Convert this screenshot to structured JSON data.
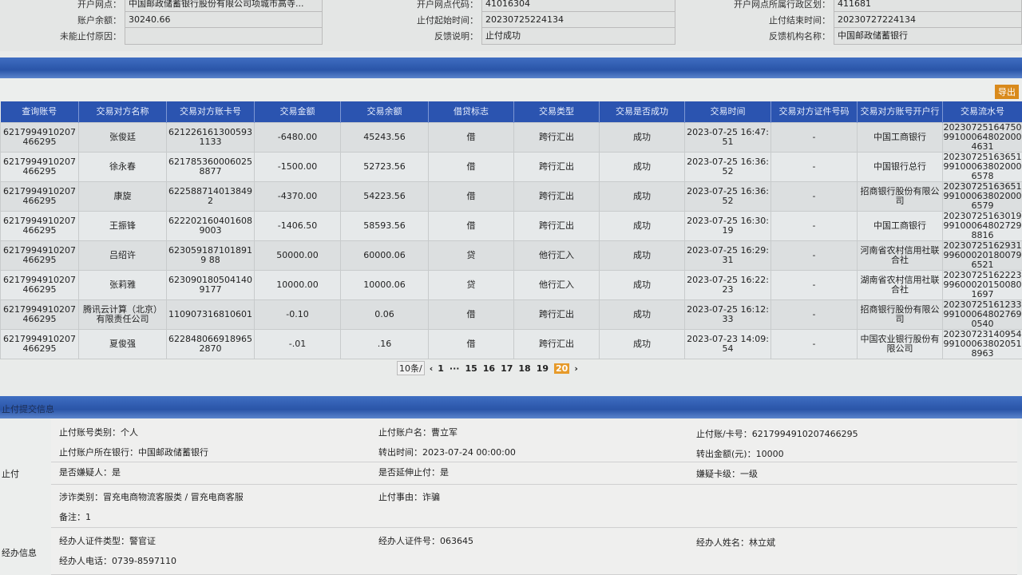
{
  "top_info": [
    {
      "label": "开户网点：",
      "value": "中国邮政储蓄银行股份有限公司项城市高寺..."
    },
    {
      "label": "开户网点代码：",
      "value": "41016304"
    },
    {
      "label": "开户网点所属行政区划：",
      "value": "411681"
    },
    {
      "label": "账户余额：",
      "value": "30240.66"
    },
    {
      "label": "止付起始时间：",
      "value": "20230725224134"
    },
    {
      "label": "止付结束时间：",
      "value": "20230727224134"
    },
    {
      "label": "未能止付原因：",
      "value": ""
    },
    {
      "label": "反馈说明：",
      "value": "止付成功"
    },
    {
      "label": "反馈机构名称：",
      "value": "中国邮政储蓄银行"
    }
  ],
  "export_label": "导出",
  "table": {
    "headers": [
      "查询账号",
      "交易对方名称",
      "交易对方账卡号",
      "交易金额",
      "交易余额",
      "借贷标志",
      "交易类型",
      "交易是否成功",
      "交易时间",
      "交易对方证件号码",
      "交易对方账号开户行",
      "交易流水号"
    ],
    "rows": [
      [
        "6217994910207466295",
        "张俊廷",
        "6212261613005931133",
        "-6480.00",
        "45243.56",
        "借",
        "跨行汇出",
        "成功",
        "2023-07-25 16:47:51",
        "-",
        "中国工商银行",
        "20230725164750991000648020004631"
      ],
      [
        "6217994910207466295",
        "徐永春",
        "6217853600060258877",
        "-1500.00",
        "52723.56",
        "借",
        "跨行汇出",
        "成功",
        "2023-07-25 16:36:52",
        "-",
        "中国银行总行",
        "20230725163651991000638020006578"
      ],
      [
        "6217994910207466295",
        "康旋",
        "622588714013849 2",
        "-4370.00",
        "54223.56",
        "借",
        "跨行汇出",
        "成功",
        "2023-07-25 16:36:52",
        "-",
        "招商银行股份有限公司",
        "20230725163651991000638020006579"
      ],
      [
        "6217994910207466295",
        "王振锋",
        "6222021604016089003",
        "-1406.50",
        "58593.56",
        "借",
        "跨行汇出",
        "成功",
        "2023-07-25 16:30:19",
        "-",
        "中国工商银行",
        "20230725163019991000648027298816"
      ],
      [
        "6217994910207466295",
        "吕绍许",
        "6230591871018919 88",
        "50000.00",
        "60000.06",
        "贷",
        "他行汇入",
        "成功",
        "2023-07-25 16:29:31",
        "-",
        "河南省农村信用社联合社",
        "2023072516293199600020180079 6521"
      ],
      [
        "6217994910207466295",
        "张莉雅",
        "6230901805041409177",
        "10000.00",
        "10000.06",
        "贷",
        "他行汇入",
        "成功",
        "2023-07-25 16:22:23",
        "-",
        "湖南省农村信用社联合社",
        "2023072516222399600020150080 1697"
      ],
      [
        "6217994910207466295",
        "腾讯云计算（北京）有限责任公司",
        "110907316810601",
        "-0.10",
        "0.06",
        "借",
        "跨行汇出",
        "成功",
        "2023-07-25 16:12:33",
        "-",
        "招商银行股份有限公司",
        "2023072516123399100064802769 0540"
      ],
      [
        "6217994910207466295",
        "夏俊强",
        "6228480669189652870",
        "-.01",
        ".16",
        "借",
        "跨行汇出",
        "成功",
        "2023-07-23 14:09:54",
        "-",
        "中国农业银行股份有限公司",
        "2023072314095499100063802051 8963"
      ]
    ]
  },
  "pager": {
    "page_size": "10条/",
    "pages": [
      "1",
      "···",
      "15",
      "16",
      "17",
      "18",
      "19",
      "20"
    ],
    "current": "20"
  },
  "section_title": "止付提交信息",
  "stop": {
    "side_label": "止付",
    "fields": [
      "止付账号类别：个人",
      "止付账户名：曹立军",
      "止付账/卡号：6217994910207466295",
      "止付账户所在银行：中国邮政储蓄银行",
      "转出时间：2023-07-24 00:00:00",
      "转出金额(元)：10000",
      "是否嫌疑人：是",
      "是否延伸止付：是",
      "嫌疑卡级：一级",
      "涉诈类别：冒充电商物流客服类 / 冒充电商客服",
      "止付事由：诈骗",
      "备注：1"
    ]
  },
  "handler": {
    "side_label": "经办信息",
    "fields": [
      "经办人证件类型：警官证",
      "经办人证件号：063645",
      "经办人姓名：林立斌",
      "经办人电话：0739-8597110"
    ]
  }
}
